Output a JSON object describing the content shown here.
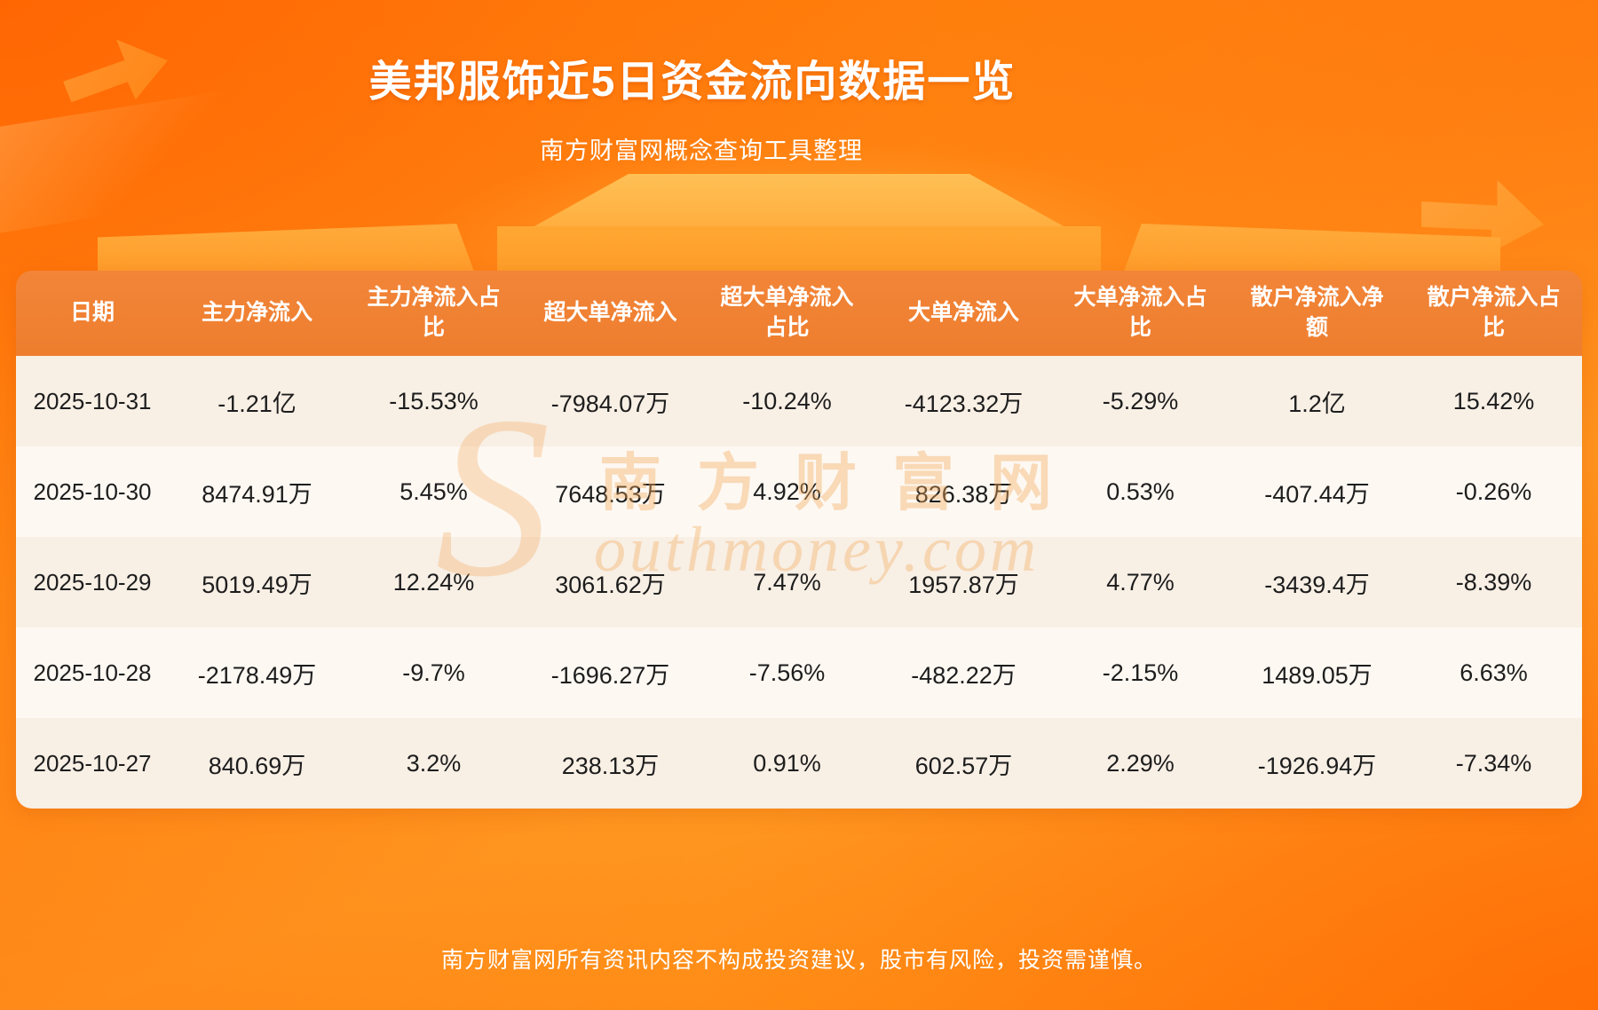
{
  "page": {
    "title": "美邦服饰近5日资金流向数据一览",
    "subtitle": "南方财富网概念查询工具整理",
    "footer": "南方财富网所有资讯内容不构成投资建议，股市有风险，投资需谨慎。"
  },
  "watermark": {
    "initial": "S",
    "cn": "南方财富网",
    "en": "outhmoney.com"
  },
  "colors": {
    "background_orange": "#ff8d18",
    "header_orange": "#ee7e2e",
    "row_odd": "#f8efe5",
    "row_even": "#fdf8f2",
    "title_text": "#ffffff",
    "body_text": "#1d1d1d"
  },
  "chart_data": {
    "type": "table",
    "title": "美邦服饰近5日资金流向数据一览",
    "source_note": "南方财富网概念查询工具整理",
    "columns": [
      "日期",
      "主力净流入",
      "主力净流入占比",
      "超大单净流入",
      "超大单净流入占比",
      "大单净流入",
      "大单净流入占比",
      "散户净流入净额",
      "散户净流入占比"
    ],
    "rows": [
      [
        "2025-10-31",
        "-1.21亿",
        "-15.53%",
        "-7984.07万",
        "-10.24%",
        "-4123.32万",
        "-5.29%",
        "1.2亿",
        "15.42%"
      ],
      [
        "2025-10-30",
        "8474.91万",
        "5.45%",
        "7648.53万",
        "4.92%",
        "826.38万",
        "0.53%",
        "-407.44万",
        "-0.26%"
      ],
      [
        "2025-10-29",
        "5019.49万",
        "12.24%",
        "3061.62万",
        "7.47%",
        "1957.87万",
        "4.77%",
        "-3439.4万",
        "-8.39%"
      ],
      [
        "2025-10-28",
        "-2178.49万",
        "-9.7%",
        "-1696.27万",
        "-7.56%",
        "-482.22万",
        "-2.15%",
        "1489.05万",
        "6.63%"
      ],
      [
        "2025-10-27",
        "840.69万",
        "3.2%",
        "238.13万",
        "0.91%",
        "602.57万",
        "2.29%",
        "-1926.94万",
        "-7.34%"
      ]
    ]
  }
}
